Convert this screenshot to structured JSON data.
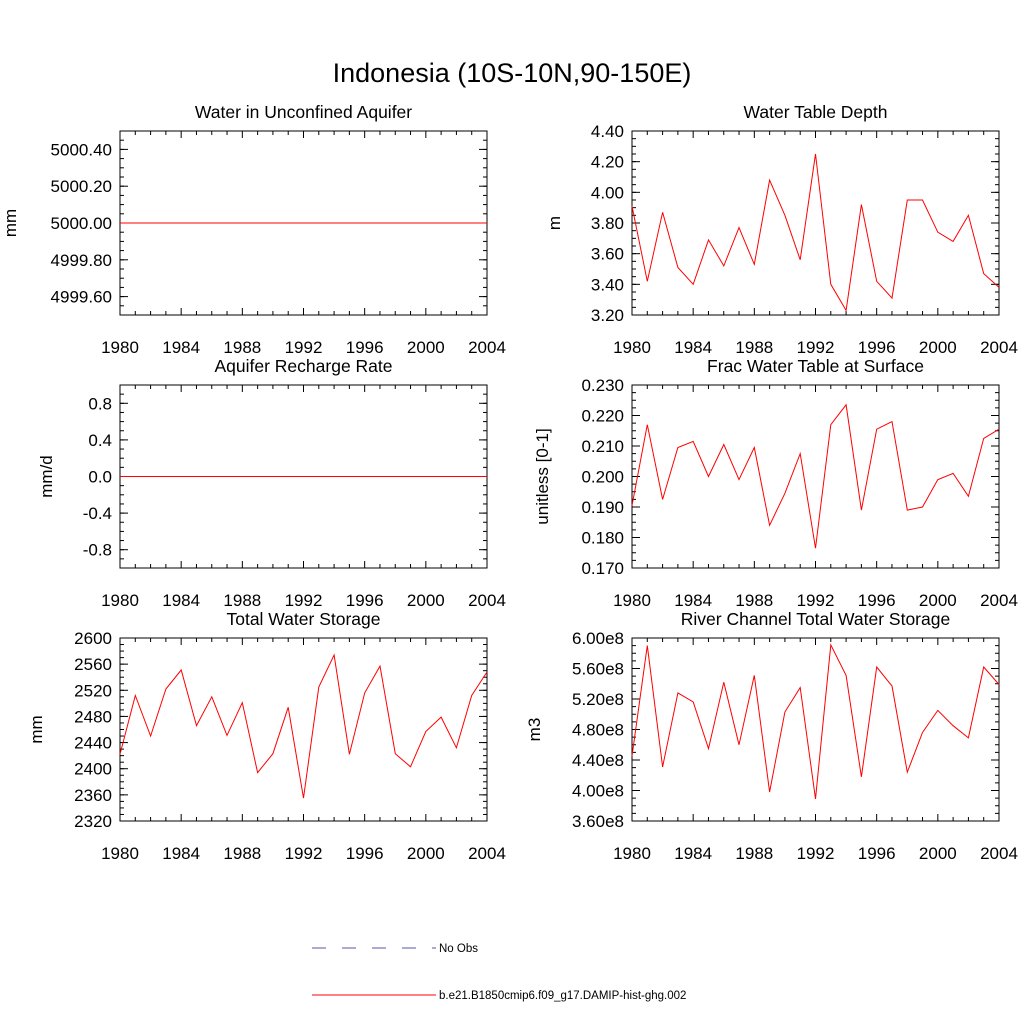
{
  "figure": {
    "title": "Indonesia (10S-10N,90-150E)",
    "background": "#ffffff",
    "line_color": "#ff0000"
  },
  "legend": {
    "placement": "bottom-center",
    "items": [
      {
        "label": "No Obs",
        "color": "#5555aa",
        "style": "dashed"
      },
      {
        "label": "b.e21.B1850cmip6.f09_g17.DAMIP-hist-ghg.002",
        "color": "#ff0000",
        "style": "solid"
      }
    ]
  },
  "chart_data": [
    {
      "type": "line",
      "title": "Water in Unconfined Aquifer",
      "xlabel": "",
      "ylabel": "mm",
      "xlim": [
        1980,
        2004
      ],
      "ylim": [
        4999.5,
        5000.5
      ],
      "xticks": [
        "1980",
        "1984",
        "1988",
        "1992",
        "1996",
        "2000",
        "2004"
      ],
      "yticks": [
        {
          "value": 4999.6,
          "label": "4999.60"
        },
        {
          "value": 4999.8,
          "label": "4999.80"
        },
        {
          "value": 5000.0,
          "label": "5000.00"
        },
        {
          "value": 5000.2,
          "label": "5000.20"
        },
        {
          "value": 5000.4,
          "label": "5000.40"
        }
      ],
      "x": [
        1980,
        1981,
        1982,
        1983,
        1984,
        1985,
        1986,
        1987,
        1988,
        1989,
        1990,
        1991,
        1992,
        1993,
        1994,
        1995,
        1996,
        1997,
        1998,
        1999,
        2000,
        2001,
        2002,
        2003,
        2004
      ],
      "y": [
        5000,
        5000,
        5000,
        5000,
        5000,
        5000,
        5000,
        5000,
        5000,
        5000,
        5000,
        5000,
        5000,
        5000,
        5000,
        5000,
        5000,
        5000,
        5000,
        5000,
        5000,
        5000,
        5000,
        5000,
        5000
      ]
    },
    {
      "type": "line",
      "title": "Water Table Depth",
      "xlabel": "",
      "ylabel": "m",
      "xlim": [
        1980,
        2004
      ],
      "ylim": [
        3.2,
        4.4
      ],
      "xticks": [
        "1980",
        "1984",
        "1988",
        "1992",
        "1996",
        "2000",
        "2004"
      ],
      "yticks": [
        {
          "value": 3.2,
          "label": "3.20"
        },
        {
          "value": 3.4,
          "label": "3.40"
        },
        {
          "value": 3.6,
          "label": "3.60"
        },
        {
          "value": 3.8,
          "label": "3.80"
        },
        {
          "value": 4.0,
          "label": "4.00"
        },
        {
          "value": 4.2,
          "label": "4.20"
        },
        {
          "value": 4.4,
          "label": "4.40"
        }
      ],
      "x": [
        1980,
        1981,
        1982,
        1983,
        1984,
        1985,
        1986,
        1987,
        1988,
        1989,
        1990,
        1991,
        1992,
        1993,
        1994,
        1995,
        1996,
        1997,
        1998,
        1999,
        2000,
        2001,
        2002,
        2003,
        2004
      ],
      "y": [
        3.91,
        3.42,
        3.87,
        3.51,
        3.4,
        3.69,
        3.52,
        3.77,
        3.53,
        4.08,
        3.85,
        3.56,
        4.25,
        3.4,
        3.23,
        3.92,
        3.42,
        3.31,
        3.95,
        3.95,
        3.74,
        3.68,
        3.85,
        3.47,
        3.38
      ]
    },
    {
      "type": "line",
      "title": "Aquifer Recharge Rate",
      "xlabel": "",
      "ylabel": "mm/d",
      "xlim": [
        1980,
        2004
      ],
      "ylim": [
        -1.0,
        1.0
      ],
      "xticks": [
        "1980",
        "1984",
        "1988",
        "1992",
        "1996",
        "2000",
        "2004"
      ],
      "yticks": [
        {
          "value": -0.8,
          "label": "-0.8"
        },
        {
          "value": -0.4,
          "label": "-0.4"
        },
        {
          "value": 0.0,
          "label": "0.0"
        },
        {
          "value": 0.4,
          "label": "0.4"
        },
        {
          "value": 0.8,
          "label": "0.8"
        }
      ],
      "x": [
        1980,
        1981,
        1982,
        1983,
        1984,
        1985,
        1986,
        1987,
        1988,
        1989,
        1990,
        1991,
        1992,
        1993,
        1994,
        1995,
        1996,
        1997,
        1998,
        1999,
        2000,
        2001,
        2002,
        2003,
        2004
      ],
      "y": [
        0,
        0,
        0,
        0,
        0,
        0,
        0,
        0,
        0,
        0,
        0,
        0,
        0,
        0,
        0,
        0,
        0,
        0,
        0,
        0,
        0,
        0,
        0,
        0,
        0
      ]
    },
    {
      "type": "line",
      "title": "Frac Water Table at Surface",
      "xlabel": "",
      "ylabel": "unitless [0-1]",
      "xlim": [
        1980,
        2004
      ],
      "ylim": [
        0.17,
        0.23
      ],
      "xticks": [
        "1980",
        "1984",
        "1988",
        "1992",
        "1996",
        "2000",
        "2004"
      ],
      "yticks": [
        {
          "value": 0.17,
          "label": "0.170"
        },
        {
          "value": 0.18,
          "label": "0.180"
        },
        {
          "value": 0.19,
          "label": "0.190"
        },
        {
          "value": 0.2,
          "label": "0.200"
        },
        {
          "value": 0.21,
          "label": "0.210"
        },
        {
          "value": 0.22,
          "label": "0.220"
        },
        {
          "value": 0.23,
          "label": "0.230"
        }
      ],
      "x": [
        1980,
        1981,
        1982,
        1983,
        1984,
        1985,
        1986,
        1987,
        1988,
        1989,
        1990,
        1991,
        1992,
        1993,
        1994,
        1995,
        1996,
        1997,
        1998,
        1999,
        2000,
        2001,
        2002,
        2003,
        2004
      ],
      "y": [
        0.1905,
        0.217,
        0.1925,
        0.2095,
        0.2115,
        0.2,
        0.2105,
        0.199,
        0.2095,
        0.184,
        0.1945,
        0.2075,
        0.1765,
        0.217,
        0.2235,
        0.189,
        0.2155,
        0.218,
        0.189,
        0.19,
        0.199,
        0.201,
        0.1935,
        0.2125,
        0.2155
      ]
    },
    {
      "type": "line",
      "title": "Total Water Storage",
      "xlabel": "",
      "ylabel": "mm",
      "xlim": [
        1980,
        2004
      ],
      "ylim": [
        2320,
        2600
      ],
      "xticks": [
        "1980",
        "1984",
        "1988",
        "1992",
        "1996",
        "2000",
        "2004"
      ],
      "yticks": [
        {
          "value": 2320,
          "label": "2320"
        },
        {
          "value": 2360,
          "label": "2360"
        },
        {
          "value": 2400,
          "label": "2400"
        },
        {
          "value": 2440,
          "label": "2440"
        },
        {
          "value": 2480,
          "label": "2480"
        },
        {
          "value": 2520,
          "label": "2520"
        },
        {
          "value": 2560,
          "label": "2560"
        },
        {
          "value": 2600,
          "label": "2600"
        }
      ],
      "x": [
        1980,
        1981,
        1982,
        1983,
        1984,
        1985,
        1986,
        1987,
        1988,
        1989,
        1990,
        1991,
        1992,
        1993,
        1994,
        1995,
        1996,
        1997,
        1998,
        1999,
        2000,
        2001,
        2002,
        2003,
        2004
      ],
      "y": [
        2422,
        2512,
        2450,
        2522,
        2551,
        2466,
        2510,
        2451,
        2501,
        2394,
        2423,
        2494,
        2355,
        2525,
        2574,
        2422,
        2516,
        2557,
        2423,
        2403,
        2457,
        2479,
        2432,
        2512,
        2548
      ]
    },
    {
      "type": "line",
      "title": "River Channel Total Water Storage",
      "xlabel": "",
      "ylabel": "m3",
      "xlim": [
        1980,
        2004
      ],
      "ylim": [
        360000000.0,
        600000000.0
      ],
      "xticks": [
        "1980",
        "1984",
        "1988",
        "1992",
        "1996",
        "2000",
        "2004"
      ],
      "yticks": [
        {
          "value": 360000000,
          "label": "3.60e8"
        },
        {
          "value": 400000000,
          "label": "4.00e8"
        },
        {
          "value": 440000000,
          "label": "4.40e8"
        },
        {
          "value": 480000000,
          "label": "4.80e8"
        },
        {
          "value": 520000000,
          "label": "5.20e8"
        },
        {
          "value": 560000000,
          "label": "5.60e8"
        },
        {
          "value": 600000000,
          "label": "6.00e8"
        }
      ],
      "x": [
        1980,
        1981,
        1982,
        1983,
        1984,
        1985,
        1986,
        1987,
        1988,
        1989,
        1990,
        1991,
        1992,
        1993,
        1994,
        1995,
        1996,
        1997,
        1998,
        1999,
        2000,
        2001,
        2002,
        2003,
        2004
      ],
      "y": [
        445000000,
        590000000,
        431000000,
        528000000,
        516000000,
        455000000,
        542000000,
        460000000,
        551000000,
        398000000,
        503000000,
        535000000,
        389000000,
        591000000,
        551000000,
        418000000,
        562000000,
        537000000,
        424000000,
        476000000,
        505000000,
        485000000,
        469000000,
        562000000,
        539000000
      ]
    }
  ]
}
